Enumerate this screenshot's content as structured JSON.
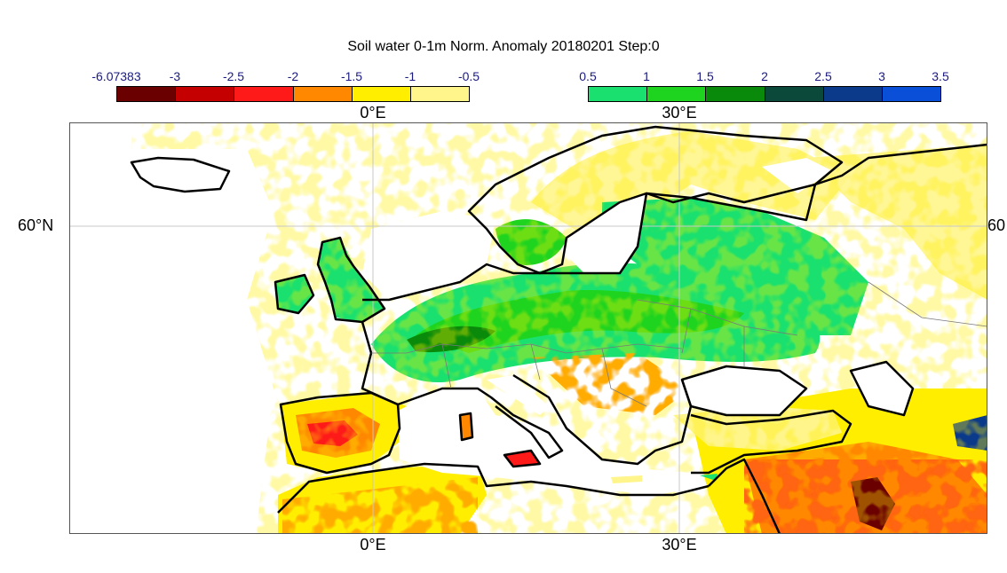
{
  "title": "Soil water 0-1m Norm. Anomaly 20180201 Step:0",
  "colorbar_negative": {
    "ticks": [
      "-6.07383",
      "-3",
      "-2.5",
      "-2",
      "-1.5",
      "-1",
      "-0.5"
    ],
    "colors": [
      "#6b0000",
      "#c40000",
      "#ff1a1a",
      "#ff8800",
      "#ffee00",
      "#fff58a"
    ]
  },
  "colorbar_positive": {
    "ticks": [
      "0.5",
      "1",
      "1.5",
      "2",
      "2.5",
      "3",
      "3.5"
    ],
    "colors": [
      "#19e06e",
      "#1fd41f",
      "#0a8a0a",
      "#0b4a3a",
      "#0b3a8a",
      "#0a4fd8"
    ]
  },
  "axis_labels": {
    "lon_0_top": "0°E",
    "lon_30_top": "30°E",
    "lon_0_bottom": "0°E",
    "lon_30_bottom": "30°E",
    "lat_60_left": "60°N",
    "lat_60_right": "60"
  },
  "map": {
    "region": "Europe",
    "variable": "Soil water 0-1m normalized anomaly",
    "date": "20180201",
    "step": "0"
  }
}
